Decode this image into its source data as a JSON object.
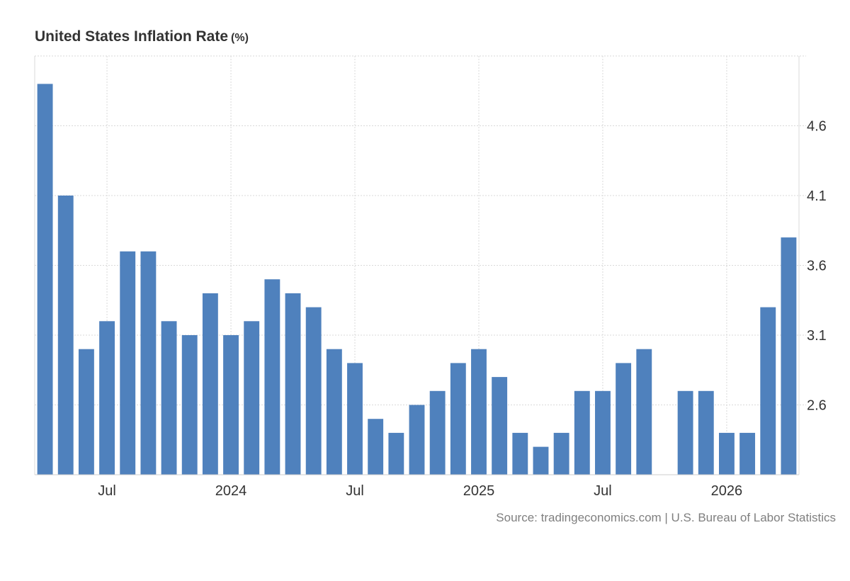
{
  "title": "United States Inflation Rate",
  "unit": "(%)",
  "source": "Source: tradingeconomics.com | U.S. Bureau of Labor Statistics",
  "colors": {
    "bar": "#4f81bd",
    "grid": "#d9d9d9",
    "axis": "#cccccc",
    "tick_text": "#333333"
  },
  "chart_data": {
    "type": "bar",
    "categories": [
      "Apr 2023",
      "May 2023",
      "Jun 2023",
      "Jul 2023",
      "Aug 2023",
      "Sep 2023",
      "Oct 2023",
      "Nov 2023",
      "Dec 2023",
      "Jan 2024",
      "Feb 2024",
      "Mar 2024",
      "Apr 2024",
      "May 2024",
      "Jun 2024",
      "Jul 2024",
      "Aug 2024",
      "Sep 2024",
      "Oct 2024",
      "Nov 2024",
      "Dec 2024",
      "Jan 2025",
      "Feb 2025",
      "Mar 2025",
      "Apr 2025",
      "May 2025",
      "Jun 2025",
      "Jul 2025",
      "Aug 2025",
      "Sep 2025",
      "Oct 2025",
      "Nov 2025",
      "Dec 2025",
      "Jan 2026",
      "Feb 2026",
      "Mar 2026",
      "Apr 2026"
    ],
    "values": [
      4.9,
      4.1,
      3.0,
      3.2,
      3.7,
      3.7,
      3.2,
      3.1,
      3.4,
      3.1,
      3.2,
      3.5,
      3.4,
      3.3,
      3.0,
      2.9,
      2.5,
      2.4,
      2.6,
      2.7,
      2.9,
      3.0,
      2.8,
      2.4,
      2.3,
      2.4,
      2.7,
      2.7,
      2.9,
      3.0,
      null,
      2.7,
      2.7,
      2.4,
      2.4,
      3.3,
      3.8
    ],
    "x_tick_labels": [
      {
        "label": "Jul",
        "category": "Jul 2023"
      },
      {
        "label": "2024",
        "category": "Jan 2024"
      },
      {
        "label": "Jul",
        "category": "Jul 2024"
      },
      {
        "label": "2025",
        "category": "Jan 2025"
      },
      {
        "label": "Jul",
        "category": "Jul 2025"
      },
      {
        "label": "2026",
        "category": "Jan 2026"
      }
    ],
    "y_ticks": [
      2.6,
      3.1,
      3.6,
      4.1,
      4.6
    ],
    "y_tick_labels": [
      "2.6",
      "3.1",
      "3.6",
      "4.1",
      "4.6"
    ],
    "ylim": [
      2.1,
      5.1
    ],
    "xlabel": "",
    "ylabel": "",
    "y_axis_side": "right",
    "grid": true
  }
}
